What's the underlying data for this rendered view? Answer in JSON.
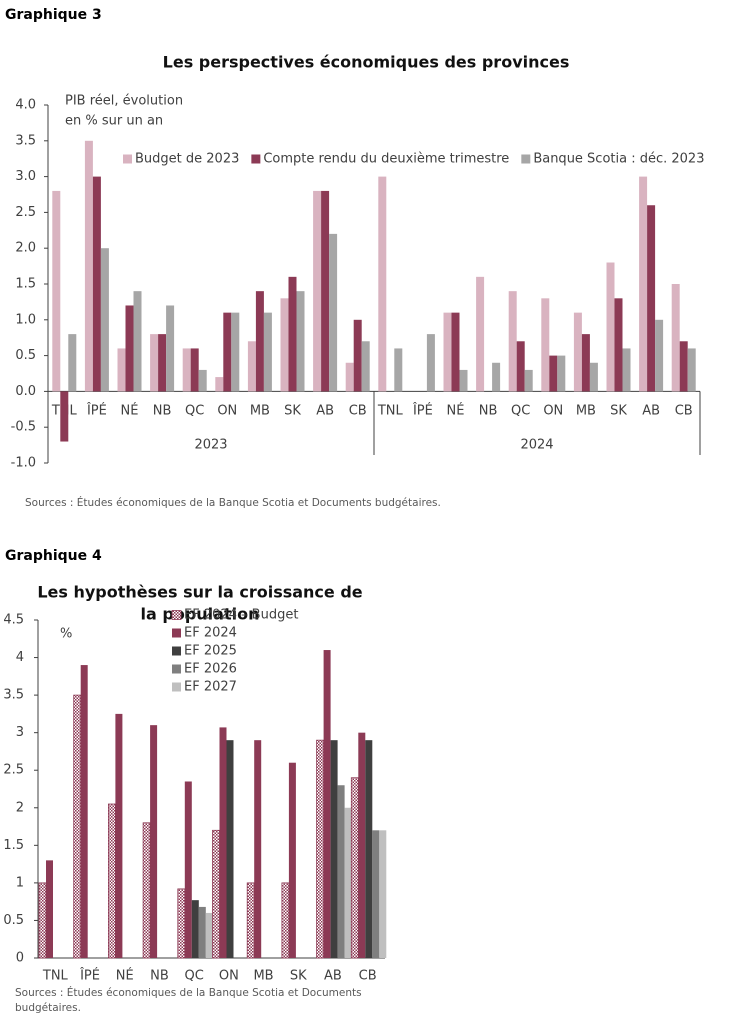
{
  "chart_data": [
    {
      "type": "bar",
      "label": "Graphique 3",
      "title": "Les perspectives économiques des provinces",
      "y_label": [
        "PIB réel, évolution",
        "en % sur un an"
      ],
      "categories": [
        "TNL",
        "ÎPÉ",
        "NÉ",
        "NB",
        "QC",
        "ON",
        "MB",
        "SK",
        "AB",
        "CB",
        "TNL",
        "ÎPÉ",
        "NÉ",
        "NB",
        "QC",
        "ON",
        "MB",
        "SK",
        "AB",
        "CB"
      ],
      "groups": [
        "2023",
        "2024"
      ],
      "series": [
        {
          "name": "Budget de 2023",
          "color": "#d9b3c0",
          "values": [
            2.8,
            3.5,
            0.6,
            0.8,
            0.6,
            0.2,
            0.7,
            1.3,
            2.8,
            0.4,
            3.0,
            null,
            1.1,
            1.6,
            1.4,
            1.3,
            1.1,
            1.8,
            3.0,
            1.5
          ]
        },
        {
          "name": "Compte rendu du deuxième trimestre",
          "color": "#8c3a55",
          "values": [
            -0.7,
            3.0,
            1.2,
            0.8,
            0.6,
            1.1,
            1.4,
            1.6,
            2.8,
            1.0,
            null,
            null,
            1.1,
            null,
            0.7,
            0.5,
            0.8,
            1.3,
            2.6,
            0.7
          ]
        },
        {
          "name": "Banque Scotia : déc. 2023",
          "color": "#a6a6a6",
          "values": [
            0.8,
            2.0,
            1.4,
            1.2,
            0.3,
            1.1,
            1.1,
            1.4,
            2.2,
            0.7,
            0.6,
            0.8,
            0.3,
            0.4,
            0.3,
            0.5,
            0.4,
            0.6,
            1.0,
            0.6
          ]
        }
      ],
      "ylim": [
        -1,
        4
      ],
      "yticks": [
        {
          "value": -1,
          "label": "-1.0"
        },
        {
          "value": -0.5,
          "label": "-0.5"
        },
        {
          "value": 0,
          "label": "0.0"
        },
        {
          "value": 0.5,
          "label": "0.5"
        },
        {
          "value": 1,
          "label": "1.0"
        },
        {
          "value": 1.5,
          "label": "1.5"
        },
        {
          "value": 2,
          "label": "2.0"
        },
        {
          "value": 2.5,
          "label": "2.5"
        },
        {
          "value": 3,
          "label": "3.0"
        },
        {
          "value": 3.5,
          "label": "3.5"
        },
        {
          "value": 4,
          "label": "4.0"
        }
      ],
      "grid": false,
      "legend": "top",
      "source": [
        "Sources : Études économiques de la Banque Scotia et Documents budgétaires."
      ]
    },
    {
      "type": "bar",
      "label": "Graphique 4",
      "title": [
        "Les hypothèses sur la croissance de",
        "la population"
      ],
      "y_label": [
        "%"
      ],
      "categories": [
        "TNL",
        "ÎPÉ",
        "NÉ",
        "NB",
        "QC",
        "ON",
        "MB",
        "SK",
        "AB",
        "CB"
      ],
      "series": [
        {
          "name": "EF 2024 – Budget",
          "color": "#8c3a55",
          "hatch": true,
          "values": [
            1.0,
            3.5,
            2.05,
            1.8,
            0.92,
            1.7,
            1.0,
            1.0,
            2.9,
            2.4
          ]
        },
        {
          "name": "EF 2024",
          "color": "#8c3a55",
          "values": [
            1.3,
            3.9,
            3.25,
            3.1,
            2.35,
            3.07,
            2.9,
            2.6,
            4.1,
            3.0
          ]
        },
        {
          "name": "EF 2025",
          "color": "#3f3f3f",
          "values": [
            null,
            null,
            null,
            null,
            0.77,
            2.9,
            null,
            null,
            2.9,
            2.9
          ]
        },
        {
          "name": "EF 2026",
          "color": "#7f7f7f",
          "values": [
            null,
            null,
            null,
            null,
            0.68,
            null,
            null,
            null,
            2.3,
            1.7
          ]
        },
        {
          "name": "EF 2027",
          "color": "#bfbfbf",
          "values": [
            null,
            null,
            null,
            null,
            0.6,
            null,
            null,
            null,
            2.0,
            1.7
          ]
        }
      ],
      "ylim": [
        0,
        4.5
      ],
      "yticks": [
        0,
        0.5,
        1,
        1.5,
        2,
        2.5,
        3,
        3.5,
        4,
        4.5
      ],
      "grid": false,
      "legend": "top",
      "source": [
        "Sources : Études économiques de la Banque Scotia et Documents",
        "budgétaires."
      ]
    }
  ]
}
